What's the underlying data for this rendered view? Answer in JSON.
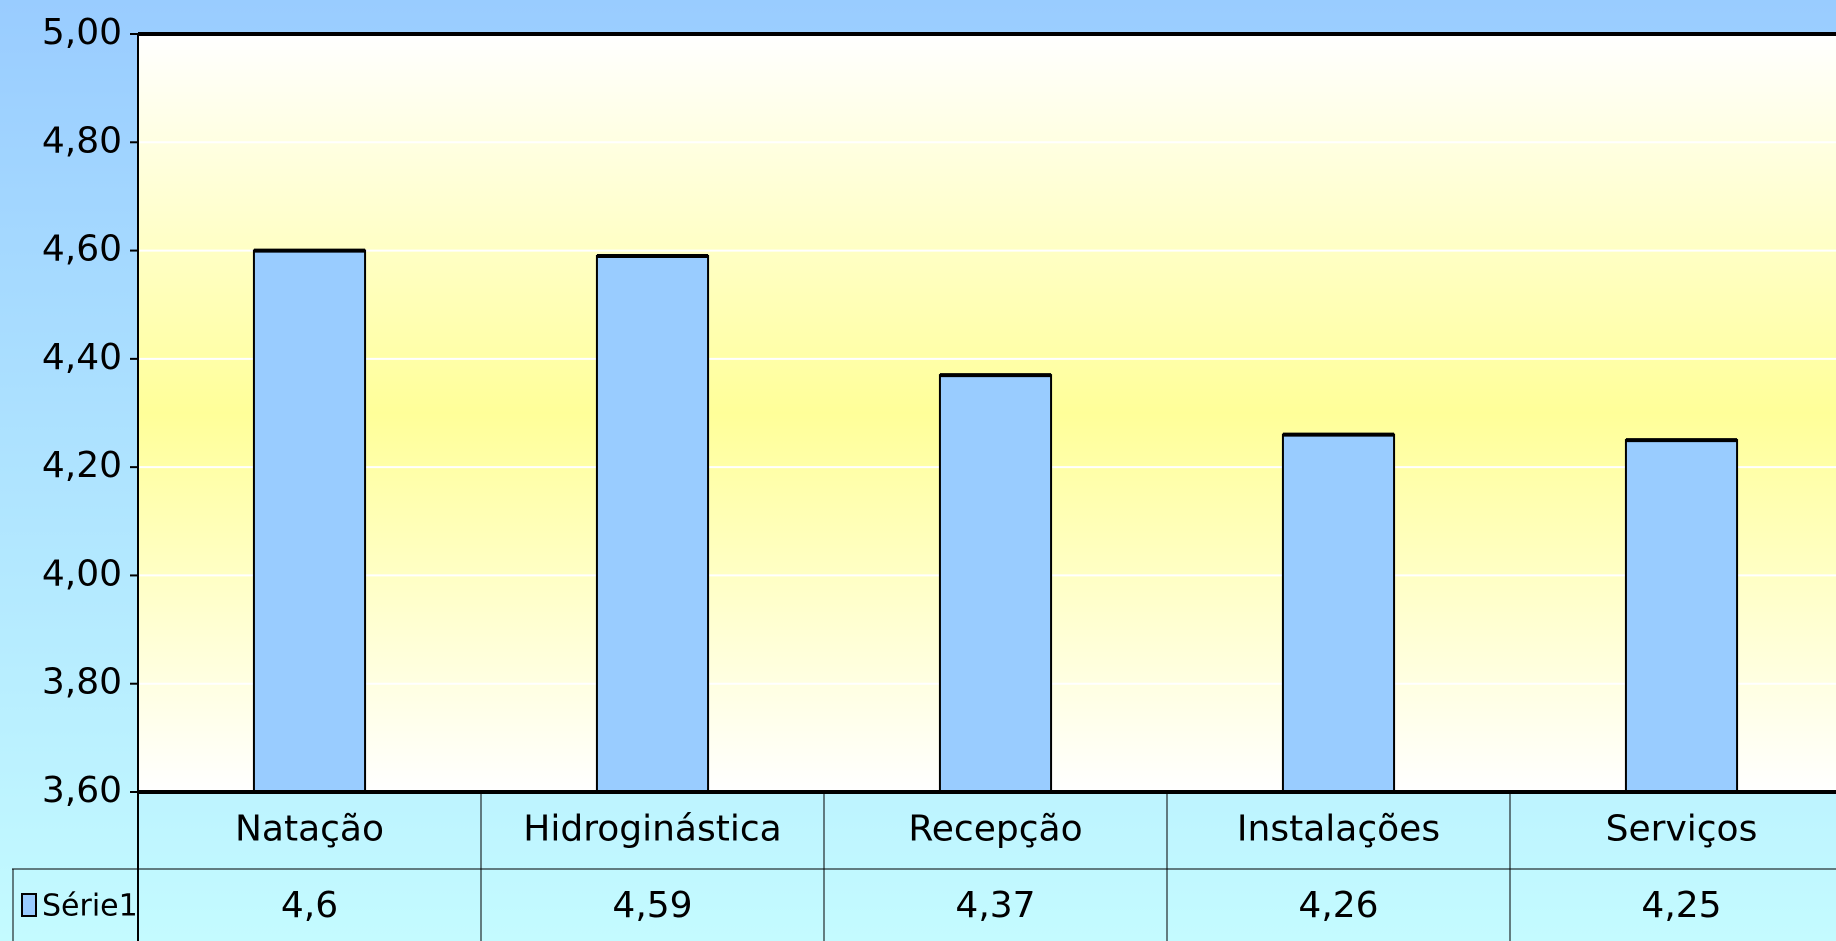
{
  "chart_data": {
    "type": "bar",
    "categories": [
      "Natação",
      "Hidroginástica",
      "Recepção",
      "Instalações",
      "Serviços"
    ],
    "series": [
      {
        "name": "Série1",
        "color": "#99ccff",
        "values": [
          4.6,
          4.59,
          4.37,
          4.26,
          4.25
        ],
        "value_labels": [
          "4,6",
          "4,59",
          "4,37",
          "4,26",
          "4,25"
        ]
      }
    ],
    "ylim": [
      3.6,
      5.0
    ],
    "yticks": [
      {
        "value": 3.6,
        "label": "3,60"
      },
      {
        "value": 3.8,
        "label": "3,80"
      },
      {
        "value": 4.0,
        "label": "4,00"
      },
      {
        "value": 4.2,
        "label": "4,20"
      },
      {
        "value": 4.4,
        "label": "4,40"
      },
      {
        "value": 4.6,
        "label": "4,60"
      },
      {
        "value": 4.8,
        "label": "4,80"
      },
      {
        "value": 5.0,
        "label": "5,00"
      }
    ],
    "grid": true,
    "legend": "bottom-left"
  }
}
